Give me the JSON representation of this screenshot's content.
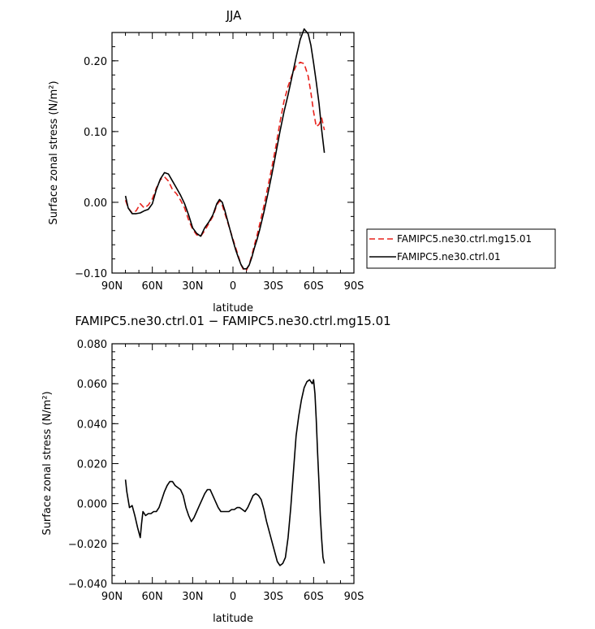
{
  "chart_data": [
    {
      "type": "line",
      "title": "JJA",
      "xlabel": "latitude",
      "ylabel": "Surface zonal stress (N/m²)",
      "xlim": [
        -90,
        90
      ],
      "ylim": [
        -0.1,
        0.24
      ],
      "x_ticks": [
        "90N",
        "60N",
        "30N",
        "0",
        "30S",
        "60S",
        "90S"
      ],
      "y_ticks": [
        "−0.10",
        "0.00",
        "0.10",
        "0.20"
      ],
      "x": [
        -80,
        -78,
        -75,
        -72,
        -69,
        -66,
        -63,
        -60,
        -57,
        -54,
        -51,
        -48,
        -45,
        -42,
        -39,
        -36,
        -33,
        -30,
        -27,
        -24,
        -21,
        -18,
        -15,
        -12,
        -10,
        -8,
        -6,
        -4,
        -2,
        0,
        2,
        4,
        6,
        8,
        10,
        12,
        14,
        16,
        18,
        20,
        23,
        26,
        29,
        32,
        35,
        38,
        41,
        44,
        47,
        50,
        53,
        56,
        58,
        60,
        62,
        64,
        66,
        68
      ],
      "series": [
        {
          "name": "FAMIPC5.ne30.ctrl.mg15.01",
          "color": "#e8221c",
          "dash": "dashed",
          "values": [
            0.003,
            -0.008,
            -0.015,
            -0.012,
            -0.002,
            -0.008,
            -0.004,
            0.005,
            0.02,
            0.032,
            0.036,
            0.03,
            0.018,
            0.012,
            0.003,
            -0.008,
            -0.025,
            -0.038,
            -0.046,
            -0.048,
            -0.04,
            -0.03,
            -0.02,
            -0.004,
            0.002,
            -0.004,
            -0.016,
            -0.028,
            -0.04,
            -0.052,
            -0.064,
            -0.076,
            -0.088,
            -0.096,
            -0.096,
            -0.088,
            -0.075,
            -0.06,
            -0.046,
            -0.03,
            -0.005,
            0.022,
            0.05,
            0.08,
            0.113,
            0.143,
            0.164,
            0.18,
            0.193,
            0.198,
            0.196,
            0.178,
            0.155,
            0.128,
            0.107,
            0.11,
            0.119,
            0.102
          ]
        },
        {
          "name": "FAMIPC5.ne30.ctrl.01",
          "color": "#000000",
          "dash": "solid",
          "values": [
            0.009,
            -0.008,
            -0.016,
            -0.016,
            -0.015,
            -0.012,
            -0.01,
            -0.002,
            0.018,
            0.033,
            0.042,
            0.04,
            0.03,
            0.02,
            0.01,
            -0.002,
            -0.018,
            -0.036,
            -0.044,
            -0.048,
            -0.036,
            -0.028,
            -0.018,
            -0.002,
            0.004,
            0.0,
            -0.012,
            -0.026,
            -0.04,
            -0.054,
            -0.067,
            -0.078,
            -0.088,
            -0.094,
            -0.094,
            -0.089,
            -0.078,
            -0.064,
            -0.052,
            -0.038,
            -0.014,
            0.012,
            0.04,
            0.07,
            0.1,
            0.128,
            0.152,
            0.178,
            0.205,
            0.23,
            0.245,
            0.238,
            0.222,
            0.197,
            0.17,
            0.14,
            0.102,
            0.07
          ]
        }
      ],
      "legend_position": "right"
    },
    {
      "type": "line",
      "title": "FAMIPC5.ne30.ctrl.01 − FAMIPC5.ne30.ctrl.mg15.01",
      "xlabel": "latitude",
      "ylabel": "Surface zonal stress (N/m²)",
      "xlim": [
        -90,
        90
      ],
      "ylim": [
        -0.04,
        0.08
      ],
      "x_ticks": [
        "90N",
        "60N",
        "30N",
        "0",
        "30S",
        "60S",
        "90S"
      ],
      "y_ticks": [
        "−0.040",
        "−0.020",
        "0.000",
        "0.020",
        "0.040",
        "0.060",
        "0.080"
      ],
      "x": [
        -80,
        -79,
        -77,
        -75,
        -73,
        -71,
        -69,
        -68,
        -67,
        -65,
        -63,
        -61,
        -59,
        -57,
        -55,
        -53,
        -51,
        -49,
        -47,
        -45,
        -43,
        -41,
        -39,
        -37,
        -35,
        -33,
        -31,
        -29,
        -27,
        -25,
        -23,
        -21,
        -19,
        -17,
        -15,
        -13,
        -11,
        -9,
        -7,
        -5,
        -3,
        -1,
        1,
        3,
        5,
        7,
        9,
        11,
        13,
        15,
        17,
        19,
        21,
        23,
        25,
        27,
        29,
        31,
        33,
        35,
        37,
        39,
        41,
        43,
        45,
        47,
        49,
        51,
        53,
        55,
        57,
        58,
        59,
        60,
        61,
        62,
        63,
        64,
        65,
        66,
        67,
        68
      ],
      "series": [
        {
          "name": "",
          "color": "#000000",
          "dash": "solid",
          "values": [
            0.012,
            0.006,
            -0.002,
            -0.001,
            -0.006,
            -0.012,
            -0.017,
            -0.01,
            -0.004,
            -0.006,
            -0.005,
            -0.005,
            -0.004,
            -0.004,
            -0.002,
            0.002,
            0.006,
            0.009,
            0.011,
            0.011,
            0.009,
            0.008,
            0.007,
            0.004,
            -0.002,
            -0.006,
            -0.009,
            -0.007,
            -0.004,
            -0.001,
            0.002,
            0.005,
            0.007,
            0.007,
            0.004,
            0.001,
            -0.002,
            -0.004,
            -0.004,
            -0.004,
            -0.004,
            -0.003,
            -0.003,
            -0.002,
            -0.002,
            -0.003,
            -0.004,
            -0.002,
            0.001,
            0.004,
            0.005,
            0.004,
            0.002,
            -0.003,
            -0.009,
            -0.014,
            -0.019,
            -0.024,
            -0.029,
            -0.031,
            -0.03,
            -0.027,
            -0.017,
            -0.002,
            0.016,
            0.034,
            0.044,
            0.052,
            0.058,
            0.061,
            0.062,
            0.061,
            0.06,
            0.062,
            0.055,
            0.042,
            0.025,
            0.01,
            -0.006,
            -0.018,
            -0.027,
            -0.03
          ]
        }
      ]
    }
  ]
}
